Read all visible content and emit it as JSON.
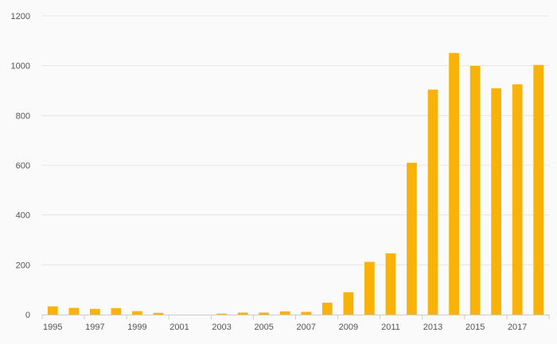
{
  "chart_data": {
    "type": "bar",
    "title": "",
    "xlabel": "",
    "ylabel": "",
    "categories": [
      "1995",
      "1996",
      "1997",
      "1998",
      "1999",
      "2000",
      "2001",
      "2002",
      "2003",
      "2004",
      "2005",
      "2006",
      "2007",
      "2008",
      "2009",
      "2010",
      "2011",
      "2012",
      "2013",
      "2014",
      "2015",
      "2016",
      "2017",
      "2018"
    ],
    "x_tick_labels": [
      "1995",
      "1997",
      "1999",
      "2001",
      "2003",
      "2005",
      "2007",
      "2009",
      "2011",
      "2013",
      "2015",
      "2017"
    ],
    "values": [
      33,
      27,
      23,
      26,
      14,
      7,
      0,
      0,
      4,
      8,
      8,
      13,
      11,
      48,
      90,
      212,
      246,
      610,
      904,
      1051,
      999,
      909,
      925,
      1003
    ],
    "ylim": [
      0,
      1200
    ],
    "y_ticks": [
      0,
      200,
      400,
      600,
      800,
      1000,
      1200
    ],
    "grid": true,
    "legend": "none",
    "bar_color": "#f9b208"
  }
}
